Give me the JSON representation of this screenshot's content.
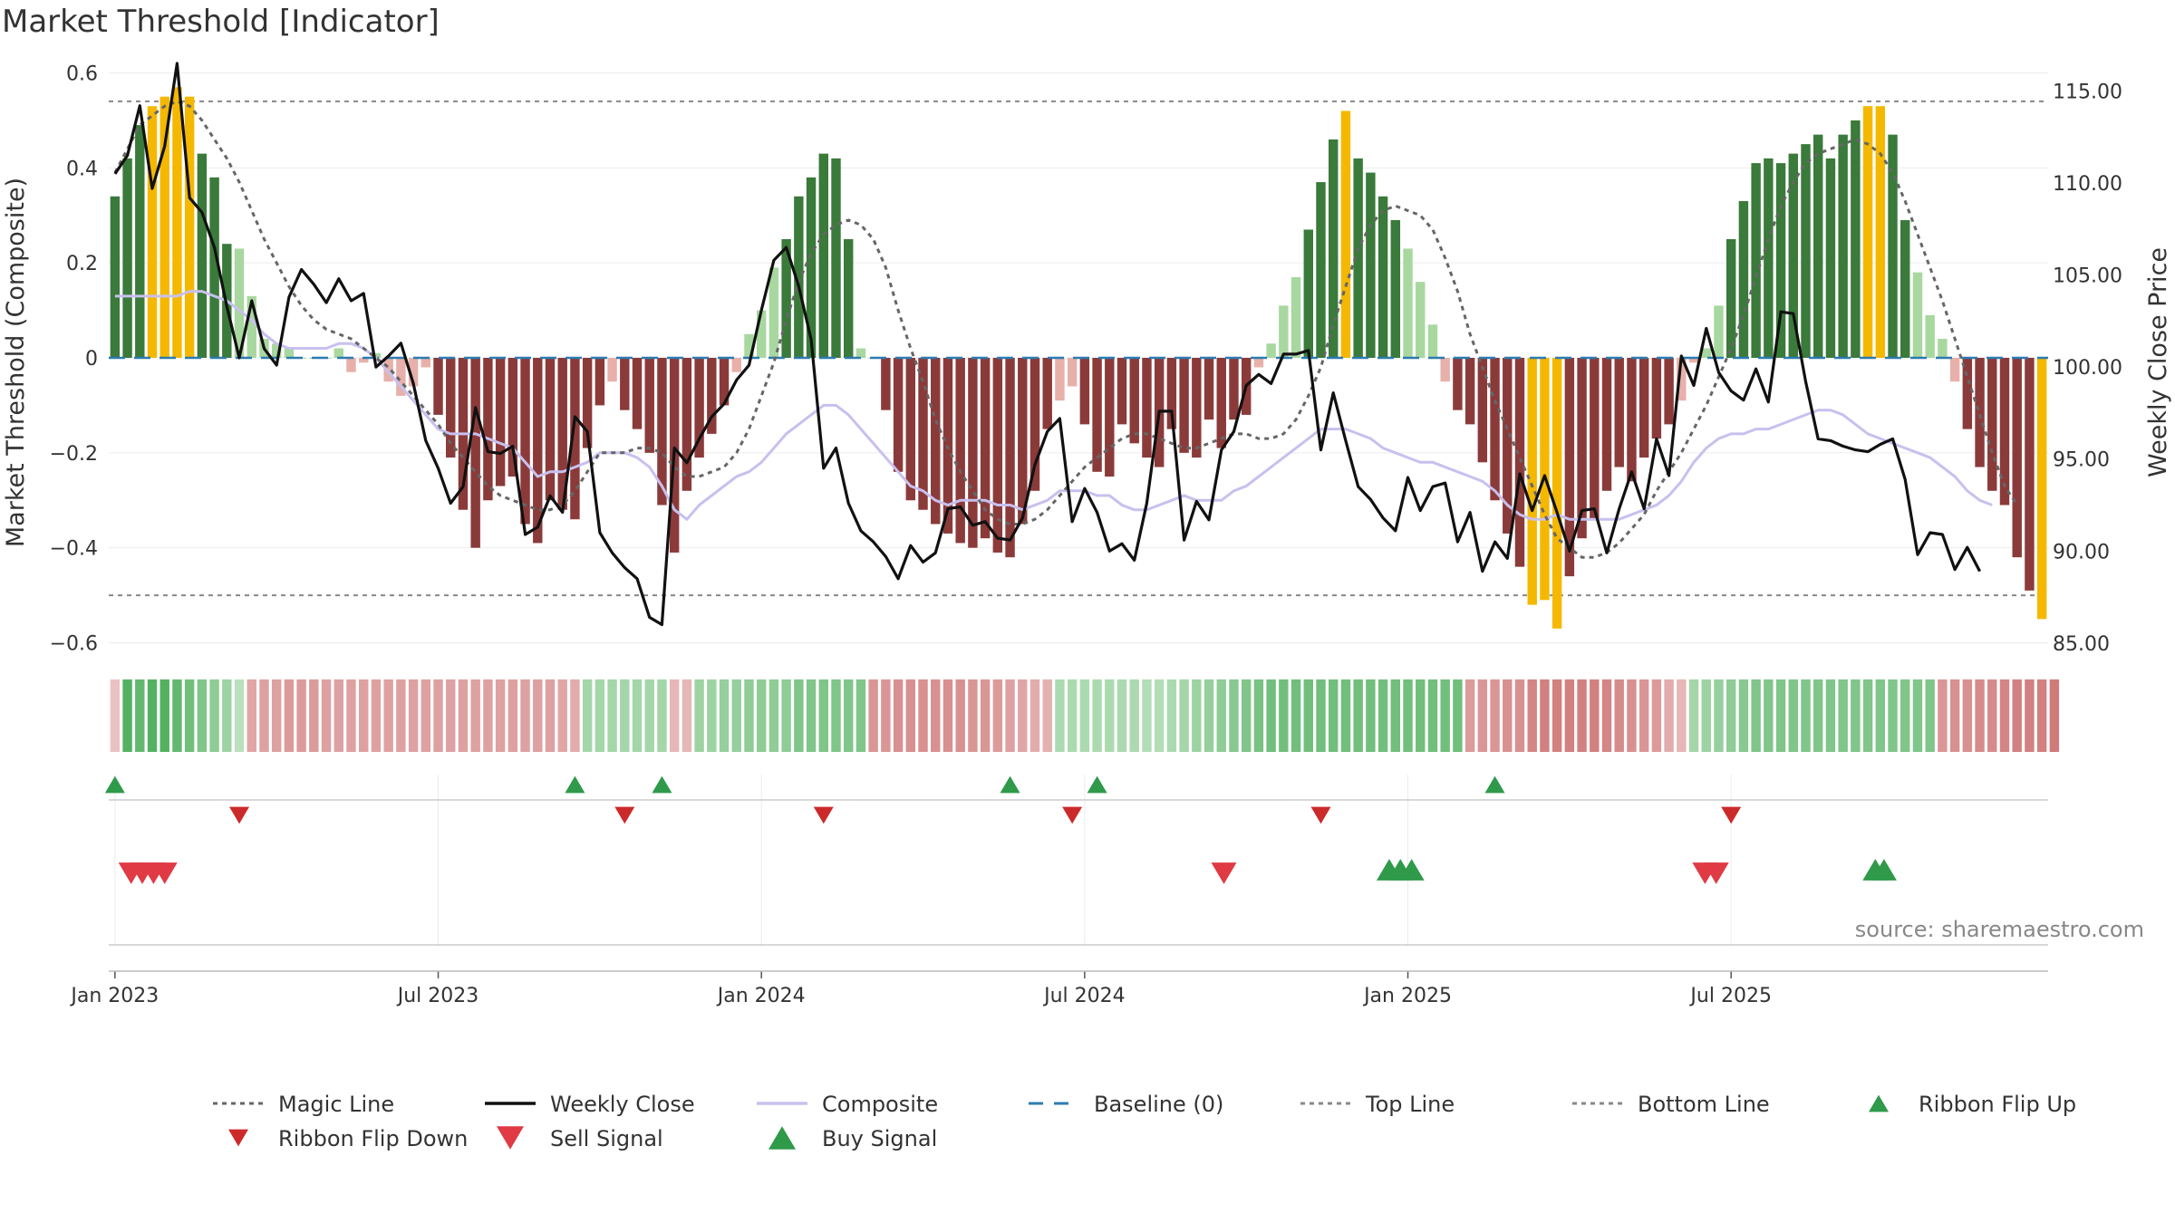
{
  "chart_data": {
    "type": "bar",
    "title": "Market Threshold [Indicator]",
    "ylabel": "Market Threshold (Composite)",
    "y2label": "Weekly Close Price",
    "ylim": [
      -0.62,
      0.62
    ],
    "y2lim": [
      84.5,
      116.5
    ],
    "y_ticks": [
      "0.6",
      "0.4",
      "0.2",
      "0",
      "−0.2",
      "−0.4",
      "−0.6"
    ],
    "y_tick_values": [
      0.6,
      0.4,
      0.2,
      0,
      -0.2,
      -0.4,
      -0.6
    ],
    "y2_ticks": [
      "115.00",
      "110.00",
      "105.00",
      "100.00",
      "95.00",
      "90.00",
      "85.00"
    ],
    "y2_tick_values": [
      115,
      110,
      105,
      100,
      95,
      90,
      85
    ],
    "x_ticks": [
      "Jan 2023",
      "Jul 2023",
      "Jan 2024",
      "Jul 2024",
      "Jan 2025",
      "Jul 2025"
    ],
    "x_tick_weeks": [
      1,
      27,
      53,
      79,
      105,
      131
    ],
    "top_line": 0.54,
    "bottom_line": -0.5,
    "source": "source: sharemaestro.com",
    "composite_bars": [
      0.34,
      0.42,
      0.49,
      0.53,
      0.55,
      0.57,
      0.55,
      0.43,
      0.38,
      0.24,
      0.23,
      0.13,
      0.04,
      0.03,
      0.02,
      0.0,
      0.0,
      0.0,
      0.02,
      -0.03,
      -0.01,
      0.01,
      -0.05,
      -0.08,
      -0.06,
      -0.02,
      -0.12,
      -0.21,
      -0.32,
      -0.4,
      -0.3,
      -0.27,
      -0.25,
      -0.35,
      -0.39,
      -0.3,
      -0.32,
      -0.34,
      -0.19,
      -0.1,
      -0.05,
      -0.11,
      -0.15,
      -0.2,
      -0.31,
      -0.41,
      -0.28,
      -0.21,
      -0.16,
      -0.1,
      -0.03,
      0.05,
      0.1,
      0.19,
      0.25,
      0.34,
      0.38,
      0.43,
      0.42,
      0.25,
      0.02,
      0.0,
      -0.11,
      -0.24,
      -0.3,
      -0.32,
      -0.35,
      -0.37,
      -0.39,
      -0.4,
      -0.38,
      -0.41,
      -0.42,
      -0.35,
      -0.28,
      -0.15,
      -0.09,
      -0.06,
      -0.14,
      -0.24,
      -0.25,
      -0.14,
      -0.18,
      -0.21,
      -0.23,
      -0.15,
      -0.2,
      -0.21,
      -0.13,
      -0.19,
      -0.13,
      -0.12,
      -0.02,
      0.03,
      0.11,
      0.17,
      0.27,
      0.37,
      0.46,
      0.52,
      0.42,
      0.39,
      0.34,
      0.29,
      0.23,
      0.16,
      0.07,
      -0.05,
      -0.11,
      -0.14,
      -0.22,
      -0.3,
      -0.37,
      -0.44,
      -0.52,
      -0.51,
      -0.57,
      -0.46,
      -0.38,
      -0.34,
      -0.28,
      -0.23,
      -0.26,
      -0.21,
      -0.17,
      -0.14,
      -0.09,
      -0.01,
      0.02,
      0.11,
      0.25,
      0.33,
      0.41,
      0.42,
      0.41,
      0.43,
      0.45,
      0.47,
      0.42,
      0.47,
      0.5,
      0.53,
      0.53,
      0.47,
      0.29,
      0.18,
      0.09,
      0.04,
      -0.05,
      -0.15,
      -0.23,
      -0.28,
      -0.31,
      -0.42,
      -0.49,
      -0.55
    ],
    "bar_colors": {
      "strong_up": "#3a7a3a",
      "weak_up": "#a8d8a0",
      "strong_down": "#8b3a3a",
      "weak_down": "#e8b0aa",
      "extreme": "#f5b800"
    },
    "weekly_close": [
      110.5,
      111.5,
      114.2,
      109.7,
      112.0,
      116.5,
      109.2,
      108.4,
      106.5,
      103.3,
      100.5,
      103.6,
      101.0,
      100.1,
      103.8,
      105.3,
      104.5,
      103.5,
      104.8,
      103.6,
      104.0,
      100.0,
      100.6,
      101.3,
      99.1,
      96.0,
      94.5,
      92.6,
      93.5,
      97.8,
      95.4,
      95.3,
      95.7,
      90.9,
      91.3,
      93.0,
      92.1,
      97.3,
      96.5,
      91.0,
      89.9,
      89.1,
      88.5,
      86.4,
      86.0,
      95.6,
      94.8,
      96.1,
      97.3,
      98.0,
      99.3,
      100.1,
      103.1,
      105.8,
      106.5,
      104.4,
      101.5,
      94.5,
      95.6,
      92.6,
      91.1,
      90.5,
      89.7,
      88.5,
      90.3,
      89.4,
      89.9,
      92.3,
      92.4,
      91.4,
      91.6,
      90.7,
      90.6,
      91.8,
      94.7,
      96.5,
      97.2,
      91.6,
      93.4,
      92.1,
      90.0,
      90.4,
      89.5,
      92.6,
      97.6,
      97.6,
      90.6,
      92.7,
      91.7,
      95.5,
      96.5,
      99.0,
      99.6,
      99.1,
      100.7,
      100.7,
      100.9,
      95.5,
      98.6,
      96.0,
      93.5,
      92.8,
      91.8,
      91.1,
      94.0,
      92.2,
      93.5,
      93.7,
      90.5,
      92.1,
      88.9,
      90.5,
      89.6,
      94.2,
      92.2,
      94.1,
      92.1,
      90.0,
      92.2,
      92.3,
      89.9,
      92.3,
      94.3,
      92.3,
      96.1,
      94.1,
      100.6,
      99.0,
      102.1,
      99.7,
      98.7,
      98.2,
      99.9,
      98.1,
      103.0,
      102.9,
      99.2,
      96.1,
      96.0,
      95.7,
      95.5,
      95.4,
      95.8,
      96.1,
      93.9,
      89.8,
      91.0,
      90.9,
      89.0,
      90.2,
      88.9
    ],
    "magic_line": [
      0.39,
      0.44,
      0.49,
      0.51,
      0.53,
      0.54,
      0.53,
      0.5,
      0.46,
      0.42,
      0.37,
      0.31,
      0.25,
      0.2,
      0.15,
      0.11,
      0.08,
      0.06,
      0.05,
      0.04,
      0.02,
      0.0,
      -0.02,
      -0.05,
      -0.08,
      -0.11,
      -0.14,
      -0.18,
      -0.21,
      -0.24,
      -0.27,
      -0.29,
      -0.3,
      -0.31,
      -0.32,
      -0.32,
      -0.31,
      -0.28,
      -0.24,
      -0.2,
      -0.2,
      -0.2,
      -0.19,
      -0.19,
      -0.2,
      -0.23,
      -0.25,
      -0.25,
      -0.24,
      -0.23,
      -0.2,
      -0.15,
      -0.08,
      -0.01,
      0.08,
      0.16,
      0.22,
      0.26,
      0.28,
      0.29,
      0.28,
      0.25,
      0.19,
      0.1,
      0.02,
      -0.05,
      -0.13,
      -0.19,
      -0.24,
      -0.28,
      -0.32,
      -0.34,
      -0.35,
      -0.35,
      -0.34,
      -0.32,
      -0.29,
      -0.26,
      -0.23,
      -0.21,
      -0.19,
      -0.17,
      -0.16,
      -0.16,
      -0.17,
      -0.18,
      -0.19,
      -0.19,
      -0.18,
      -0.17,
      -0.16,
      -0.16,
      -0.17,
      -0.17,
      -0.16,
      -0.13,
      -0.08,
      -0.02,
      0.07,
      0.15,
      0.23,
      0.28,
      0.31,
      0.32,
      0.31,
      0.3,
      0.27,
      0.21,
      0.14,
      0.05,
      -0.02,
      -0.09,
      -0.15,
      -0.21,
      -0.27,
      -0.33,
      -0.38,
      -0.4,
      -0.42,
      -0.42,
      -0.41,
      -0.39,
      -0.36,
      -0.33,
      -0.28,
      -0.24,
      -0.2,
      -0.15,
      -0.1,
      -0.04,
      0.02,
      0.09,
      0.17,
      0.25,
      0.32,
      0.37,
      0.41,
      0.43,
      0.44,
      0.45,
      0.46,
      0.45,
      0.43,
      0.39,
      0.33,
      0.26,
      0.19,
      0.12,
      0.04,
      -0.04,
      -0.12,
      -0.2,
      -0.27,
      -0.31
    ],
    "composite_line": [
      0.13,
      0.13,
      0.13,
      0.13,
      0.13,
      0.13,
      0.14,
      0.14,
      0.13,
      0.12,
      0.1,
      0.08,
      0.05,
      0.03,
      0.02,
      0.02,
      0.02,
      0.02,
      0.03,
      0.03,
      0.02,
      0.0,
      -0.03,
      -0.06,
      -0.09,
      -0.12,
      -0.15,
      -0.16,
      -0.16,
      -0.16,
      -0.17,
      -0.18,
      -0.19,
      -0.22,
      -0.25,
      -0.24,
      -0.24,
      -0.23,
      -0.22,
      -0.2,
      -0.2,
      -0.2,
      -0.21,
      -0.23,
      -0.27,
      -0.32,
      -0.34,
      -0.31,
      -0.29,
      -0.27,
      -0.25,
      -0.24,
      -0.22,
      -0.19,
      -0.16,
      -0.14,
      -0.12,
      -0.1,
      -0.1,
      -0.12,
      -0.15,
      -0.18,
      -0.21,
      -0.24,
      -0.27,
      -0.28,
      -0.3,
      -0.31,
      -0.3,
      -0.3,
      -0.3,
      -0.31,
      -0.31,
      -0.32,
      -0.31,
      -0.3,
      -0.28,
      -0.28,
      -0.28,
      -0.29,
      -0.29,
      -0.31,
      -0.32,
      -0.32,
      -0.31,
      -0.3,
      -0.29,
      -0.3,
      -0.3,
      -0.3,
      -0.28,
      -0.27,
      -0.25,
      -0.23,
      -0.21,
      -0.19,
      -0.17,
      -0.15,
      -0.15,
      -0.15,
      -0.16,
      -0.17,
      -0.19,
      -0.2,
      -0.21,
      -0.22,
      -0.22,
      -0.23,
      -0.24,
      -0.25,
      -0.26,
      -0.28,
      -0.31,
      -0.33,
      -0.34,
      -0.34,
      -0.33,
      -0.34,
      -0.34,
      -0.34,
      -0.34,
      -0.34,
      -0.33,
      -0.32,
      -0.31,
      -0.29,
      -0.26,
      -0.22,
      -0.19,
      -0.17,
      -0.16,
      -0.16,
      -0.15,
      -0.15,
      -0.14,
      -0.13,
      -0.12,
      -0.11,
      -0.11,
      -0.12,
      -0.14,
      -0.16,
      -0.17,
      -0.18,
      -0.19,
      -0.2,
      -0.21,
      -0.23,
      -0.25,
      -0.28,
      -0.3,
      -0.31
    ],
    "ribbon_values": [
      -0.15,
      0.9,
      0.8,
      0.9,
      0.9,
      0.8,
      0.7,
      0.6,
      0.5,
      0.4,
      0.2,
      -0.4,
      -0.45,
      -0.45,
      -0.5,
      -0.5,
      -0.5,
      -0.45,
      -0.45,
      -0.45,
      -0.45,
      -0.45,
      -0.45,
      -0.45,
      -0.45,
      -0.45,
      -0.45,
      -0.45,
      -0.45,
      -0.45,
      -0.45,
      -0.45,
      -0.45,
      -0.45,
      -0.45,
      -0.45,
      -0.4,
      -0.35,
      0.35,
      0.35,
      0.35,
      0.35,
      0.35,
      0.35,
      0.35,
      -0.25,
      -0.25,
      0.4,
      0.4,
      0.45,
      0.45,
      0.5,
      0.5,
      0.5,
      0.5,
      0.6,
      0.6,
      0.6,
      0.6,
      0.6,
      0.6,
      -0.55,
      -0.55,
      -0.6,
      -0.6,
      -0.6,
      -0.6,
      -0.6,
      -0.6,
      -0.55,
      -0.55,
      -0.5,
      -0.45,
      -0.4,
      -0.35,
      -0.3,
      0.3,
      0.3,
      0.3,
      0.3,
      0.3,
      0.3,
      0.3,
      0.25,
      0.25,
      0.3,
      0.35,
      0.4,
      0.45,
      0.5,
      0.55,
      0.6,
      0.65,
      0.7,
      0.7,
      0.7,
      0.7,
      0.7,
      0.7,
      0.7,
      0.7,
      0.7,
      0.7,
      0.7,
      0.7,
      0.7,
      0.7,
      0.7,
      0.7,
      -0.5,
      -0.55,
      -0.55,
      -0.6,
      -0.6,
      -0.7,
      -0.75,
      -0.75,
      -0.75,
      -0.75,
      -0.75,
      -0.7,
      -0.65,
      -0.6,
      -0.55,
      -0.5,
      -0.35,
      -0.25,
      0.35,
      0.4,
      0.45,
      0.5,
      0.55,
      0.6,
      0.6,
      0.6,
      0.6,
      0.6,
      0.6,
      0.6,
      0.6,
      0.6,
      0.6,
      0.6,
      0.6,
      0.6,
      0.6,
      0.6,
      -0.55,
      -0.6,
      -0.6,
      -0.65,
      -0.65,
      -0.7,
      -0.75,
      -0.75,
      -0.75,
      -0.8
    ],
    "signals": {
      "buy_row1": [
        1,
        38,
        45,
        73,
        80,
        112
      ],
      "sell_row1": [
        11,
        42,
        58,
        78,
        98,
        131
      ],
      "sell_row2": [
        2.3,
        3.2,
        4.1,
        5.0,
        90.2,
        128.9,
        129.8
      ],
      "buy_row2": [
        103.5,
        104.4,
        105.3,
        142.6,
        143.3
      ]
    },
    "colors": {
      "magic_line": "#666666",
      "weekly_close": "#111111",
      "composite": "#c8c0ee",
      "baseline": "#2d7bb0",
      "threshold_lines": "#888888",
      "flip_up": "#2e9a4a",
      "flip_down": "#cc2a2a",
      "sell_signal": "#e03a45",
      "buy_signal": "#2e9a4a"
    },
    "legend": [
      "Magic Line",
      "Weekly Close",
      "Composite",
      "Baseline (0)",
      "Top Line",
      "Bottom Line",
      "Ribbon Flip Up",
      "Ribbon Flip Down",
      "Sell Signal",
      "Buy Signal"
    ]
  }
}
